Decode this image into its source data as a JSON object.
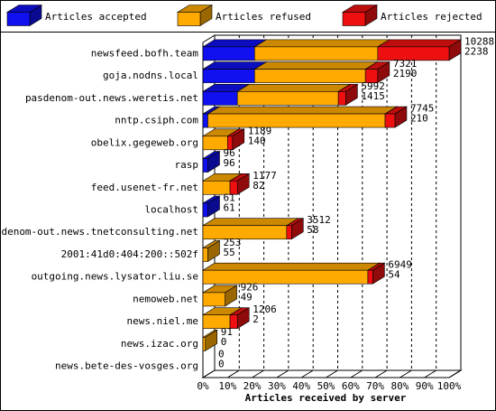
{
  "chart_data": {
    "type": "stacked-bar-3d",
    "orientation": "horizontal",
    "xlabel": "Articles received by server",
    "categories": [
      "newsfeed.bofh.team",
      "goja.nodns.local",
      "pasdenom-out.news.weretis.net",
      "nntp.csiph.com",
      "obelix.gegeweb.org",
      "rasp",
      "feed.usenet-fr.net",
      "localhost",
      "pasdenom-out.news.tnetconsulting.net",
      "2001:41d0:404:200::502f",
      "outgoing.news.lysator.liu.se",
      "nemoweb.net",
      "news.niel.me",
      "news.izac.org",
      "news.bete-des-vosges.org"
    ],
    "series": [
      {
        "name": "Articles accepted",
        "color": "#1010f0",
        "values": [
          21,
          21,
          14,
          2,
          0,
          2,
          0,
          2,
          0,
          0,
          0,
          0,
          0,
          0,
          0
        ]
      },
      {
        "name": "Articles refused",
        "color": "#ffaa00",
        "values": [
          50,
          45,
          41,
          72,
          10,
          0,
          11,
          0,
          34,
          2,
          67,
          9,
          11,
          1,
          0
        ]
      },
      {
        "name": "Articles rejected",
        "color": "#ee1010",
        "values": [
          29,
          5,
          3,
          4,
          2,
          0,
          3,
          0,
          2,
          0,
          2,
          0,
          3,
          0,
          0
        ]
      }
    ],
    "row_labels": [
      [
        10288,
        2238
      ],
      [
        7321,
        2190
      ],
      [
        5992,
        1415
      ],
      [
        7745,
        210
      ],
      [
        1189,
        140
      ],
      [
        96,
        96
      ],
      [
        1177,
        82
      ],
      [
        61,
        61
      ],
      [
        3512,
        58
      ],
      [
        253,
        55
      ],
      [
        6949,
        54
      ],
      [
        926,
        49
      ],
      [
        1206,
        2
      ],
      [
        91,
        0
      ],
      [
        0,
        0
      ]
    ],
    "xlim": [
      0,
      100
    ],
    "xticks": [
      {
        "value": 0,
        "label": "0%"
      },
      {
        "value": 10,
        "label": "10%"
      },
      {
        "value": 20,
        "label": "20%"
      },
      {
        "value": 30,
        "label": "30%"
      },
      {
        "value": 40,
        "label": "40%"
      },
      {
        "value": 50,
        "label": "50%"
      },
      {
        "value": 60,
        "label": "60%"
      },
      {
        "value": 70,
        "label": "70%"
      },
      {
        "value": 80,
        "label": "80%"
      },
      {
        "value": 90,
        "label": "90%"
      },
      {
        "value": 100,
        "label": "100%"
      }
    ],
    "grid": true
  }
}
